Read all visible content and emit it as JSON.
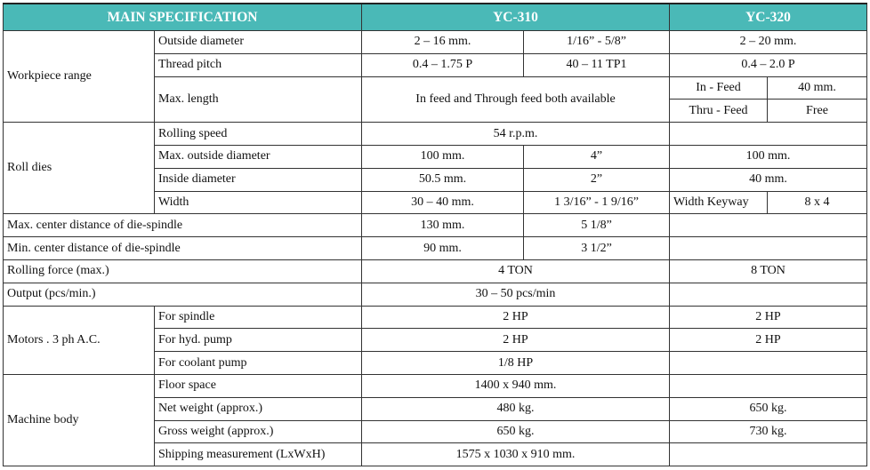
{
  "header": {
    "spec": "MAIN SPECIFICATION",
    "model_a": "YC-310",
    "model_b": "YC-320"
  },
  "header_color": "#4ab9b7",
  "rows": [
    [
      {
        "t": "Workpiece range",
        "rs": 4,
        "a": "l"
      },
      {
        "t": "Outside diameter",
        "a": "l"
      },
      {
        "t": "2 – 16 mm."
      },
      {
        "t": "1/16” - 5/8”"
      },
      {
        "t": "2 – 20 mm.",
        "cs": 2
      }
    ],
    [
      {
        "t": "Thread pitch",
        "a": "l"
      },
      {
        "t": "0.4 – 1.75 P"
      },
      {
        "t": "40 – 11 TP1"
      },
      {
        "t": "0.4 – 2.0 P",
        "cs": 2
      }
    ],
    [
      {
        "t": "Max. length",
        "rs": 2,
        "a": "l"
      },
      {
        "t": "In feed and Through feed both available",
        "cs": 2,
        "rs": 2
      },
      {
        "t": "In - Feed"
      },
      {
        "t": "40 mm."
      }
    ],
    [
      {
        "t": "Thru - Feed"
      },
      {
        "t": "Free"
      }
    ],
    [
      {
        "t": "Roll dies",
        "rs": 4,
        "a": "l"
      },
      {
        "t": "Rolling speed",
        "a": "l"
      },
      {
        "t": "54 r.p.m.",
        "cs": 2
      },
      {
        "t": "",
        "cs": 2
      }
    ],
    [
      {
        "t": "Max. outside diameter",
        "a": "l"
      },
      {
        "t": "100 mm."
      },
      {
        "t": "4”"
      },
      {
        "t": "100 mm.",
        "cs": 2
      }
    ],
    [
      {
        "t": "Inside diameter",
        "a": "l"
      },
      {
        "t": "50.5 mm."
      },
      {
        "t": "2”"
      },
      {
        "t": "40 mm.",
        "cs": 2
      }
    ],
    [
      {
        "t": "Width",
        "a": "l"
      },
      {
        "t": "30 – 40 mm."
      },
      {
        "t": "1 3/16” - 1 9/16”"
      },
      {
        "t": "Width Keyway",
        "a": "l"
      },
      {
        "t": "8 x 4"
      }
    ],
    [
      {
        "t": "Max. center distance of die-spindle",
        "cs": 2,
        "a": "l"
      },
      {
        "t": "130 mm."
      },
      {
        "t": "5 1/8”"
      },
      {
        "t": "",
        "cs": 2
      }
    ],
    [
      {
        "t": "Min.  center distance of die-spindle",
        "cs": 2,
        "a": "l"
      },
      {
        "t": "90 mm."
      },
      {
        "t": "3 1/2”"
      },
      {
        "t": "",
        "cs": 2
      }
    ],
    [
      {
        "t": "Rolling force (max.)",
        "cs": 2,
        "a": "l"
      },
      {
        "t": "4 TON",
        "cs": 2
      },
      {
        "t": "8 TON",
        "cs": 2
      }
    ],
    [
      {
        "t": "Output (pcs/min.)",
        "cs": 2,
        "a": "l"
      },
      {
        "t": "30 – 50 pcs/min",
        "cs": 2
      },
      {
        "t": "",
        "cs": 2
      }
    ],
    [
      {
        "t": "Motors . 3 ph A.C.",
        "rs": 3,
        "a": "l"
      },
      {
        "t": "For spindle",
        "a": "l"
      },
      {
        "t": "2 HP",
        "cs": 2
      },
      {
        "t": "2 HP",
        "cs": 2
      }
    ],
    [
      {
        "t": "For hyd. pump",
        "a": "l"
      },
      {
        "t": "2 HP",
        "cs": 2
      },
      {
        "t": "2 HP",
        "cs": 2
      }
    ],
    [
      {
        "t": "For coolant pump",
        "a": "l"
      },
      {
        "t": "1/8 HP",
        "cs": 2
      },
      {
        "t": "",
        "cs": 2
      }
    ],
    [
      {
        "t": "Machine body",
        "rs": 4,
        "a": "l"
      },
      {
        "t": "Floor space",
        "a": "l"
      },
      {
        "t": "1400 x 940 mm.",
        "cs": 2
      },
      {
        "t": "",
        "cs": 2
      }
    ],
    [
      {
        "t": "Net weight (approx.)",
        "a": "l"
      },
      {
        "t": "480 kg.",
        "cs": 2
      },
      {
        "t": "650 kg.",
        "cs": 2
      }
    ],
    [
      {
        "t": "Gross weight (approx.)",
        "a": "l"
      },
      {
        "t": "650 kg.",
        "cs": 2
      },
      {
        "t": "730 kg.",
        "cs": 2
      }
    ],
    [
      {
        "t": "Shipping measurement (LxWxH)",
        "a": "l"
      },
      {
        "t": "1575 x 1030 x 910 mm.",
        "cs": 2
      },
      {
        "t": "",
        "cs": 2
      }
    ]
  ]
}
